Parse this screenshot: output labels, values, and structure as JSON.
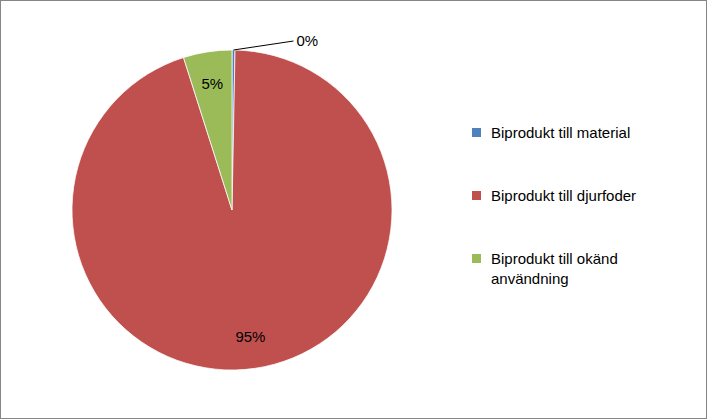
{
  "chart_data": {
    "type": "pie",
    "categories": [
      "Biprodukt till material",
      "Biprodukt till djurfoder",
      "Biprodukt till okänd användning"
    ],
    "values": [
      0.3,
      94.8,
      4.9
    ],
    "value_labels": [
      "0%",
      "95%",
      "5%"
    ],
    "colors": [
      "#4f81bd",
      "#c0504d",
      "#9bbb59"
    ],
    "data_labels": true,
    "legend": "right"
  }
}
